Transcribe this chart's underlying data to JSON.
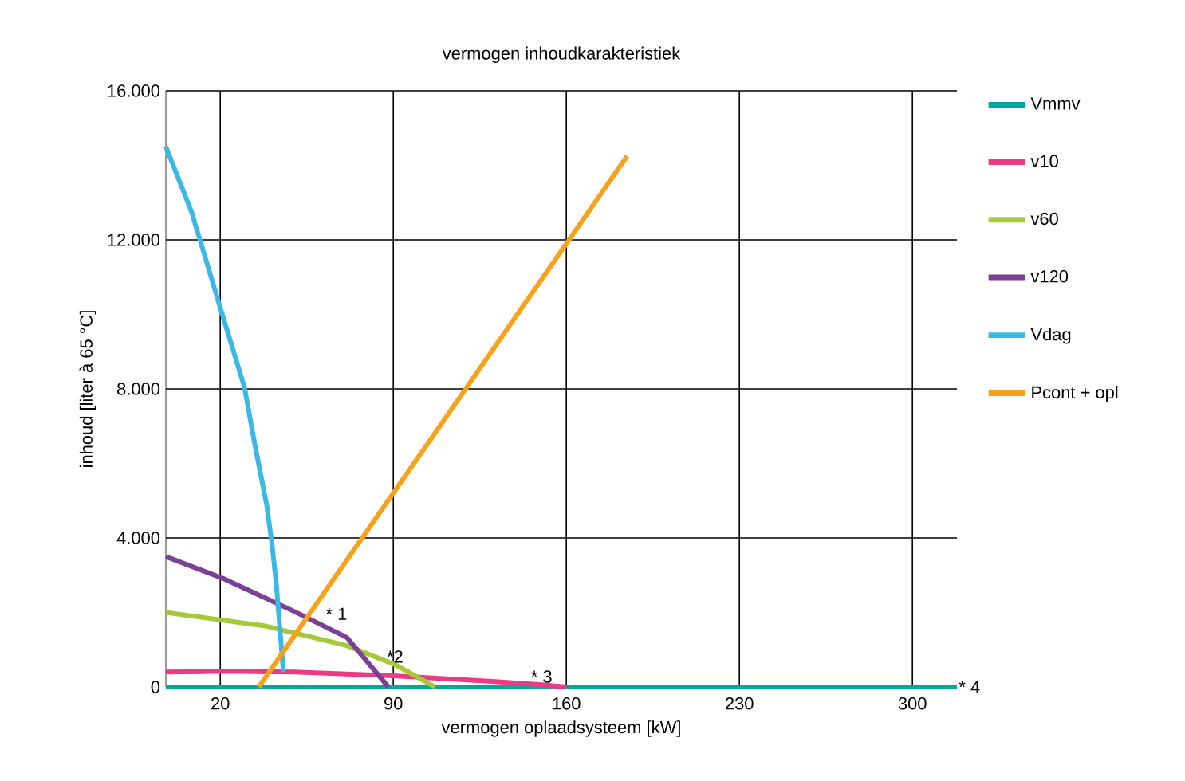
{
  "chart_data": {
    "type": "line",
    "title": "vermogen inhoudkarakteristiek",
    "xlabel": "vermogen oplaadsysteem [kW]",
    "ylabel": "inhoud [liter à 65 °C]",
    "xlim": [
      -2,
      318
    ],
    "xticks": [
      20,
      90,
      160,
      230,
      300
    ],
    "ylim": [
      0,
      16000
    ],
    "yticks": [
      {
        "value": 0,
        "label": "0"
      },
      {
        "value": 4000,
        "label": "4.000"
      },
      {
        "value": 8000,
        "label": "8.000"
      },
      {
        "value": 12000,
        "label": "12.000"
      },
      {
        "value": 16000,
        "label": "16.000"
      }
    ],
    "grid": true,
    "legend": "right",
    "marker": "none",
    "line_style": "solid",
    "series": [
      {
        "name": "Vmmv",
        "color": "#00a99d",
        "x": [
          -2,
          318
        ],
        "values": [
          0,
          0
        ]
      },
      {
        "name": "v10",
        "color": "#ec3b83",
        "x": [
          -2,
          20,
          50,
          90,
          130,
          150,
          160
        ],
        "values": [
          400,
          420,
          400,
          300,
          150,
          60,
          0
        ]
      },
      {
        "name": "v60",
        "color": "#a5c93a",
        "x": [
          -2,
          38.8,
          71.2,
          90.7,
          106.9
        ],
        "values": [
          2000,
          1630,
          1110,
          600,
          0
        ]
      },
      {
        "name": "v120",
        "color": "#7b3f96",
        "x": [
          -2,
          21.3,
          49.2,
          71.2,
          88
        ],
        "values": [
          3500,
          2910,
          2050,
          1330,
          0
        ]
      },
      {
        "name": "Vdag",
        "color": "#3cb8e4",
        "x": [
          -2,
          8.4,
          20,
          29.8,
          34,
          38.8,
          41,
          42.7,
          45.3,
          45.5
        ],
        "values": [
          14500,
          12750,
          10180,
          8040,
          6500,
          4880,
          3800,
          2740,
          600,
          400
        ]
      },
      {
        "name": "Pcont + opl",
        "color": "#f7a21b",
        "x": [
          35.6,
          184.6
        ],
        "values": [
          0,
          14250
        ]
      }
    ],
    "annotations": [
      {
        "text": "* 1",
        "x": 67,
        "y": 1750
      },
      {
        "text": "*2",
        "x": 90.7,
        "y": 600
      },
      {
        "text": "* 3",
        "x": 150,
        "y": 60
      },
      {
        "text": "* 4",
        "x": 318,
        "y": 0
      }
    ]
  }
}
